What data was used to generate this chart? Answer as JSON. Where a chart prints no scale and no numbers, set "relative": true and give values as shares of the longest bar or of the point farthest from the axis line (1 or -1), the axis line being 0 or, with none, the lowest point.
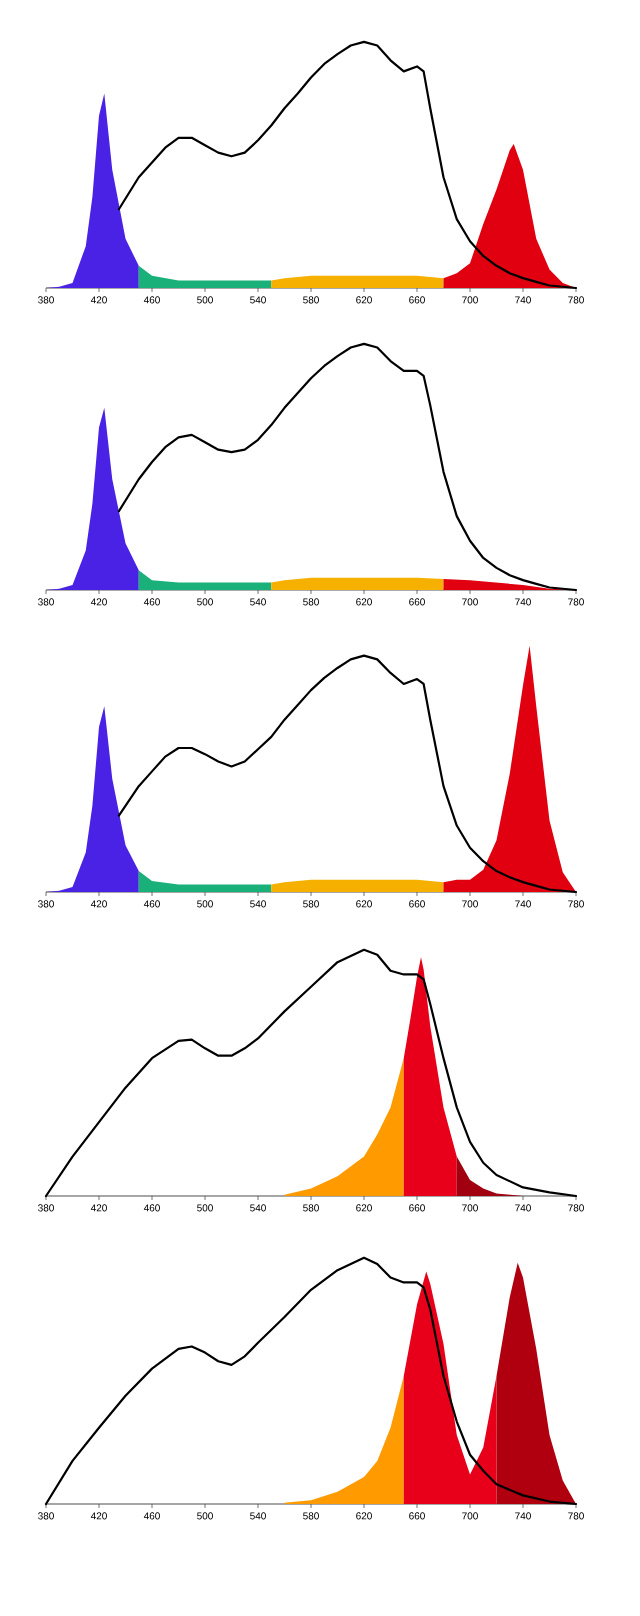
{
  "chart_data": [
    {
      "type": "area",
      "relative": true,
      "xlim": [
        380,
        780
      ],
      "xticks": [
        380,
        420,
        460,
        500,
        540,
        580,
        620,
        660,
        700,
        740,
        780
      ],
      "series": [
        {
          "color": "#4a22e6",
          "x": [
            380,
            390,
            400,
            410,
            415,
            420,
            424,
            430,
            440,
            450
          ],
          "values": [
            0,
            0.005,
            0.02,
            0.17,
            0.37,
            0.7,
            0.79,
            0.48,
            0.2,
            0.09
          ]
        },
        {
          "color": "#19b07a",
          "x": [
            450,
            460,
            480,
            500,
            520,
            540,
            550
          ],
          "values": [
            0.09,
            0.05,
            0.03,
            0.03,
            0.03,
            0.03,
            0.03
          ]
        },
        {
          "color": "#f5b000",
          "x": [
            550,
            560,
            580,
            600,
            620,
            640,
            660,
            680
          ],
          "values": [
            0.03,
            0.04,
            0.05,
            0.05,
            0.05,
            0.05,
            0.05,
            0.04
          ]
        },
        {
          "color": "#e00010",
          "x": [
            680,
            690,
            700,
            710,
            720,
            730,
            733,
            740,
            750,
            760,
            770,
            780
          ],
          "values": [
            0.04,
            0.06,
            0.1,
            0.26,
            0.4,
            0.56,
            0.585,
            0.48,
            0.2,
            0.075,
            0.02,
            0
          ]
        },
        {
          "type": "line",
          "color": "#000000",
          "x": [
            435,
            450,
            460,
            470,
            480,
            490,
            500,
            510,
            520,
            530,
            540,
            550,
            560,
            570,
            580,
            590,
            600,
            610,
            620,
            630,
            640,
            650,
            660,
            665,
            670,
            680,
            690,
            700,
            710,
            720,
            730,
            740,
            750,
            760,
            770,
            780
          ],
          "values": [
            0.32,
            0.45,
            0.51,
            0.57,
            0.61,
            0.61,
            0.58,
            0.55,
            0.535,
            0.55,
            0.6,
            0.66,
            0.73,
            0.79,
            0.855,
            0.91,
            0.95,
            0.985,
            1.0,
            0.985,
            0.925,
            0.88,
            0.9,
            0.88,
            0.73,
            0.45,
            0.28,
            0.19,
            0.13,
            0.09,
            0.06,
            0.04,
            0.025,
            0.01,
            0.005,
            0
          ]
        }
      ]
    },
    {
      "type": "area",
      "relative": true,
      "xlim": [
        380,
        780
      ],
      "xticks": [
        380,
        420,
        460,
        500,
        540,
        580,
        620,
        660,
        700,
        740,
        780
      ],
      "series": [
        {
          "color": "#4a22e6",
          "x": [
            380,
            390,
            400,
            410,
            415,
            420,
            424,
            430,
            440,
            450
          ],
          "values": [
            0,
            0.005,
            0.02,
            0.16,
            0.35,
            0.66,
            0.74,
            0.45,
            0.19,
            0.08
          ]
        },
        {
          "color": "#19b07a",
          "x": [
            450,
            460,
            480,
            500,
            520,
            540,
            550
          ],
          "values": [
            0.08,
            0.04,
            0.03,
            0.03,
            0.03,
            0.03,
            0.03
          ]
        },
        {
          "color": "#f5b000",
          "x": [
            550,
            560,
            580,
            600,
            620,
            640,
            660,
            680
          ],
          "values": [
            0.03,
            0.04,
            0.05,
            0.05,
            0.05,
            0.05,
            0.05,
            0.045
          ]
        },
        {
          "color": "#e00010",
          "x": [
            680,
            700,
            720,
            740,
            760,
            780
          ],
          "values": [
            0.045,
            0.04,
            0.03,
            0.02,
            0.005,
            0
          ]
        },
        {
          "type": "line",
          "color": "#000000",
          "x": [
            435,
            450,
            460,
            470,
            480,
            490,
            500,
            510,
            520,
            530,
            540,
            550,
            560,
            570,
            580,
            590,
            600,
            610,
            620,
            630,
            640,
            650,
            660,
            665,
            670,
            680,
            690,
            700,
            710,
            720,
            730,
            740,
            750,
            760,
            770,
            780
          ],
          "values": [
            0.32,
            0.45,
            0.52,
            0.58,
            0.62,
            0.63,
            0.6,
            0.57,
            0.56,
            0.57,
            0.61,
            0.67,
            0.74,
            0.8,
            0.86,
            0.91,
            0.95,
            0.985,
            1.0,
            0.985,
            0.93,
            0.89,
            0.89,
            0.87,
            0.75,
            0.48,
            0.3,
            0.2,
            0.13,
            0.09,
            0.06,
            0.04,
            0.025,
            0.01,
            0.005,
            0
          ]
        }
      ]
    },
    {
      "type": "area",
      "relative": true,
      "xlim": [
        380,
        780
      ],
      "xticks": [
        380,
        420,
        460,
        500,
        540,
        580,
        620,
        660,
        700,
        740,
        780
      ],
      "series": [
        {
          "color": "#4a22e6",
          "x": [
            380,
            390,
            400,
            410,
            415,
            420,
            424,
            430,
            440,
            450
          ],
          "values": [
            0,
            0.005,
            0.02,
            0.16,
            0.35,
            0.67,
            0.755,
            0.46,
            0.19,
            0.085
          ]
        },
        {
          "color": "#19b07a",
          "x": [
            450,
            460,
            480,
            500,
            520,
            540,
            550
          ],
          "values": [
            0.085,
            0.045,
            0.03,
            0.03,
            0.03,
            0.03,
            0.03
          ]
        },
        {
          "color": "#f5b000",
          "x": [
            550,
            560,
            580,
            600,
            620,
            640,
            660,
            680
          ],
          "values": [
            0.03,
            0.04,
            0.05,
            0.05,
            0.05,
            0.05,
            0.05,
            0.04
          ]
        },
        {
          "color": "#e00010",
          "x": [
            680,
            690,
            700,
            710,
            720,
            730,
            740,
            745,
            750,
            760,
            770,
            780
          ],
          "values": [
            0.04,
            0.05,
            0.05,
            0.09,
            0.21,
            0.48,
            0.84,
            1.0,
            0.755,
            0.29,
            0.08,
            0
          ]
        },
        {
          "type": "line",
          "color": "#000000",
          "x": [
            435,
            450,
            460,
            470,
            480,
            490,
            500,
            510,
            520,
            530,
            540,
            550,
            560,
            570,
            580,
            590,
            600,
            610,
            620,
            630,
            640,
            650,
            660,
            665,
            670,
            680,
            690,
            700,
            710,
            720,
            730,
            740,
            750,
            760,
            770,
            780
          ],
          "values": [
            0.31,
            0.43,
            0.49,
            0.55,
            0.585,
            0.585,
            0.56,
            0.53,
            0.51,
            0.53,
            0.58,
            0.63,
            0.7,
            0.76,
            0.82,
            0.87,
            0.91,
            0.945,
            0.96,
            0.945,
            0.89,
            0.845,
            0.865,
            0.845,
            0.7,
            0.43,
            0.27,
            0.18,
            0.125,
            0.085,
            0.06,
            0.04,
            0.025,
            0.01,
            0.005,
            0
          ]
        }
      ]
    },
    {
      "type": "area",
      "relative": true,
      "xlim": [
        380,
        780
      ],
      "xticks": [
        380,
        420,
        460,
        500,
        540,
        580,
        620,
        660,
        700,
        740,
        780
      ],
      "series": [
        {
          "color": "#ff9a00",
          "x": [
            560,
            580,
            600,
            620,
            630,
            640,
            650
          ],
          "values": [
            0.005,
            0.03,
            0.08,
            0.16,
            0.25,
            0.36,
            0.56
          ]
        },
        {
          "color": "#e8001a",
          "x": [
            650,
            655,
            660,
            663,
            665,
            670,
            680,
            690
          ],
          "values": [
            0.56,
            0.72,
            0.89,
            0.97,
            0.92,
            0.69,
            0.36,
            0.16
          ]
        },
        {
          "color": "#a00010",
          "x": [
            690,
            700,
            710,
            720,
            740
          ],
          "values": [
            0.16,
            0.065,
            0.03,
            0.01,
            0
          ]
        },
        {
          "type": "line",
          "color": "#000000",
          "x": [
            380,
            400,
            420,
            440,
            460,
            480,
            490,
            500,
            510,
            520,
            530,
            540,
            560,
            580,
            600,
            620,
            630,
            640,
            650,
            660,
            665,
            670,
            680,
            690,
            700,
            710,
            720,
            740,
            760,
            780
          ],
          "values": [
            0,
            0.16,
            0.3,
            0.44,
            0.56,
            0.63,
            0.635,
            0.6,
            0.57,
            0.57,
            0.6,
            0.64,
            0.75,
            0.85,
            0.95,
            1.0,
            0.98,
            0.915,
            0.9,
            0.9,
            0.88,
            0.78,
            0.56,
            0.36,
            0.22,
            0.135,
            0.085,
            0.035,
            0.015,
            0
          ]
        }
      ]
    },
    {
      "type": "area",
      "relative": true,
      "xlim": [
        380,
        780
      ],
      "xticks": [
        380,
        420,
        460,
        500,
        540,
        580,
        620,
        660,
        700,
        740,
        780
      ],
      "series": [
        {
          "color": "#ff9a00",
          "x": [
            560,
            580,
            600,
            620,
            630,
            640,
            650
          ],
          "values": [
            0.005,
            0.015,
            0.05,
            0.11,
            0.175,
            0.31,
            0.52
          ]
        },
        {
          "color": "#e8001a",
          "x": [
            650,
            660,
            667,
            670,
            680,
            690,
            700,
            710,
            720
          ],
          "values": [
            0.52,
            0.81,
            0.945,
            0.895,
            0.65,
            0.28,
            0.12,
            0.23,
            0.52
          ]
        },
        {
          "color": "#b0000f",
          "x": [
            720,
            730,
            736,
            740,
            750,
            760,
            770,
            780
          ],
          "values": [
            0.52,
            0.84,
            0.98,
            0.92,
            0.63,
            0.28,
            0.095,
            0
          ]
        },
        {
          "type": "line",
          "color": "#000000",
          "x": [
            380,
            400,
            420,
            440,
            460,
            480,
            490,
            500,
            510,
            520,
            530,
            540,
            560,
            580,
            600,
            620,
            630,
            640,
            650,
            660,
            665,
            670,
            680,
            690,
            700,
            710,
            720,
            740,
            760,
            780
          ],
          "values": [
            0,
            0.175,
            0.31,
            0.44,
            0.55,
            0.63,
            0.64,
            0.615,
            0.58,
            0.565,
            0.6,
            0.655,
            0.76,
            0.87,
            0.95,
            1.0,
            0.975,
            0.92,
            0.9,
            0.9,
            0.88,
            0.79,
            0.52,
            0.335,
            0.2,
            0.135,
            0.08,
            0.035,
            0.01,
            0
          ]
        }
      ]
    }
  ]
}
